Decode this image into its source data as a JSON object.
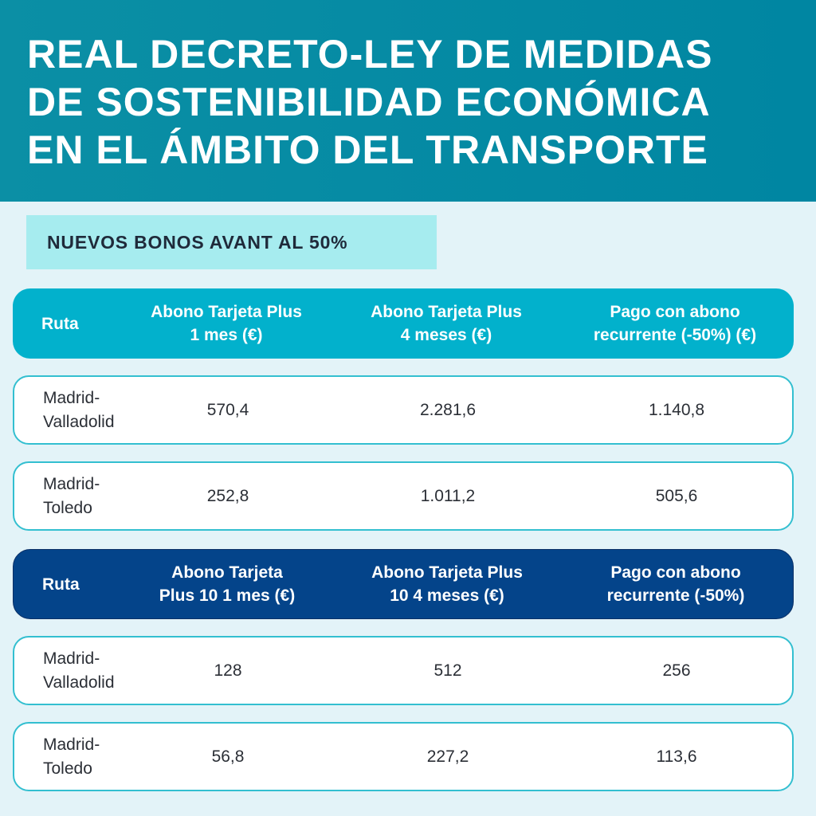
{
  "header": {
    "title_lines": [
      "REAL DECRETO-LEY DE MEDIDAS",
      "DE SOSTENIBILIDAD ECONÓMICA",
      "EN EL ÁMBITO DEL TRANSPORTE"
    ]
  },
  "subtitle": "NUEVOS BONOS AVANT AL 50%",
  "colors": {
    "header_bg": "#0b8fa5",
    "subtitle_bg": "#a6ecef",
    "table1_header_bg": "#02b1cc",
    "table2_header_bg": "#04448a",
    "row_border": "#33bfd0",
    "page_bg": "#e3f3f8"
  },
  "table1": {
    "columns": [
      "Ruta",
      "Abono Tarjeta Plus\n1 mes (€)",
      "Abono Tarjeta Plus\n4 meses (€)",
      "Pago con abono\nrecurrente (-50%) (€)"
    ],
    "rows": [
      [
        "Madrid-\nValladolid",
        "570,4",
        "2.281,6",
        "1.140,8"
      ],
      [
        "Madrid-\nToledo",
        "252,8",
        "1.011,2",
        "505,6"
      ]
    ]
  },
  "table2": {
    "columns": [
      "Ruta",
      "Abono Tarjeta\nPlus 10 1 mes (€)",
      "Abono Tarjeta Plus\n10 4 meses (€)",
      "Pago con abono\nrecurrente (-50%)"
    ],
    "rows": [
      [
        "Madrid-\nValladolid",
        "128",
        "512",
        "256"
      ],
      [
        "Madrid-\nToledo",
        "56,8",
        "227,2",
        "113,6"
      ]
    ]
  }
}
